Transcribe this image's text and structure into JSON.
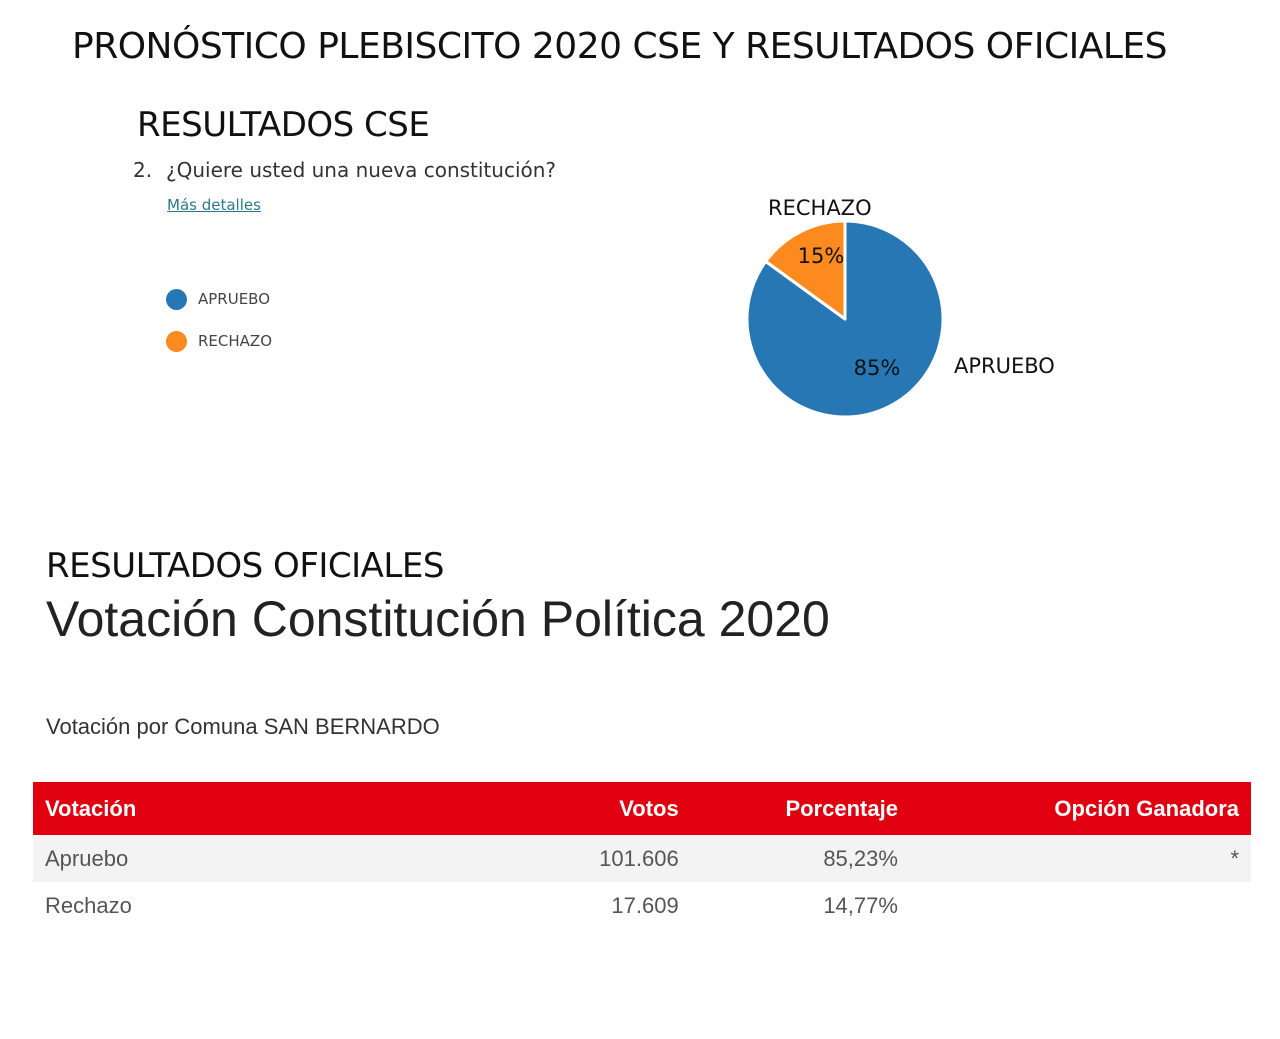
{
  "main_title": "PRONÓSTICO PLEBISCITO 2020 CSE Y RESULTADOS OFICIALES",
  "cse": {
    "section_title": "RESULTADOS CSE",
    "question_number": "2.",
    "question_text": "¿Quiere usted una nueva constitución?",
    "details_link": "Más detalles",
    "legend": [
      {
        "label": "APRUEBO",
        "color": "#2677b4"
      },
      {
        "label": "RECHAZO",
        "color": "#fd8a1f"
      }
    ]
  },
  "chart_data": {
    "type": "pie",
    "title": "",
    "slices": [
      {
        "label": "APRUEBO",
        "value": 85,
        "display": "85%",
        "color": "#2677b4"
      },
      {
        "label": "RECHAZO",
        "value": 15,
        "display": "15%",
        "color": "#fd8a1f"
      }
    ],
    "start": "12 o'clock",
    "direction": "clockwise"
  },
  "official": {
    "section_title": "RESULTADOS OFICIALES",
    "title": "Votación Constitución Política 2020",
    "subtitle": "Votación por Comuna SAN BERNARDO",
    "header_color": "#e1000f",
    "table": {
      "headers": [
        "Votación",
        "Votos",
        "Porcentaje",
        "Opción Ganadora"
      ],
      "rows": [
        [
          "Apruebo",
          "101.606",
          "85,23%",
          "*"
        ],
        [
          "Rechazo",
          "17.609",
          "14,77%",
          ""
        ]
      ]
    }
  }
}
